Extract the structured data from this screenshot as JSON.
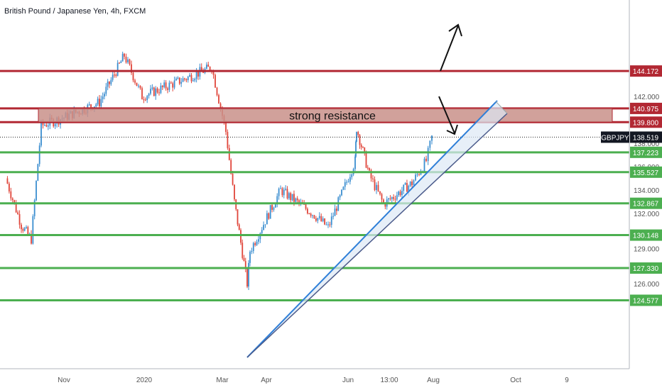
{
  "chart_data": {
    "type": "candlestick",
    "title": "British Pound / Japanese Yen, 4h, FXCM",
    "symbol": "GBPJPY",
    "last_price": "138.519",
    "y_axis_ticks": [
      "126.000",
      "129.000",
      "132.000",
      "134.000",
      "136.000",
      "138.000",
      "142.000"
    ],
    "x_axis_ticks": [
      "Nov",
      "2020",
      "Mar",
      "Apr",
      "Jun",
      "13:00",
      "Aug",
      "Oct",
      "9"
    ],
    "levels": [
      {
        "value": 144.172,
        "label": "144.172",
        "color": "#b22833"
      },
      {
        "value": 140.975,
        "label": "140.975",
        "color": "#b22833"
      },
      {
        "value": 139.8,
        "label": "139.800",
        "color": "#b22833"
      },
      {
        "value": 137.223,
        "label": "137.223",
        "color": "#4caf50"
      },
      {
        "value": 135.527,
        "label": "135.527",
        "color": "#4caf50"
      },
      {
        "value": 132.867,
        "label": "132.867",
        "color": "#4caf50"
      },
      {
        "value": 130.148,
        "label": "130.148",
        "color": "#4caf50"
      },
      {
        "value": 127.33,
        "label": "127.330",
        "color": "#4caf50"
      },
      {
        "value": 124.577,
        "label": "124.577",
        "color": "#4caf50"
      }
    ],
    "resistance_zone": {
      "low": 139.8,
      "high": 140.975,
      "label": "strong resistance",
      "fill": "#c9908a"
    },
    "price_path": [
      [
        "Sep-2019",
        135.0
      ],
      [
        "Oct-2019",
        131.0
      ],
      [
        "Oct-2019",
        129.8
      ],
      [
        "Oct-2019",
        139.5
      ],
      [
        "Nov-2019",
        140.2
      ],
      [
        "Dec-2019",
        141.5
      ],
      [
        "Dec-2019",
        145.5
      ],
      [
        "Jan-2020",
        142.0
      ],
      [
        "Feb-2020",
        143.5
      ],
      [
        "Feb-2020",
        144.5
      ],
      [
        "Mar-2020",
        139.0
      ],
      [
        "Mar-2020",
        133.0
      ],
      [
        "Mar-2020",
        126.0
      ],
      [
        "Mar-2020",
        128.8
      ],
      [
        "Apr-2020",
        134.0
      ],
      [
        "May-2020",
        132.0
      ],
      [
        "May-2020",
        130.8
      ],
      [
        "Jun-2020",
        136.5
      ],
      [
        "Jun-2020",
        139.3
      ],
      [
        "Jun-2020",
        135.3
      ],
      [
        "Jul-2020",
        132.8
      ],
      [
        "Jul-2020",
        134.6
      ],
      [
        "Jul-2020",
        136.5
      ],
      [
        "Aug-2020",
        138.5
      ]
    ],
    "colors": {
      "up": "#3b8ed0",
      "down": "#e0453a",
      "support": "#4caf50",
      "resistance": "#b22833",
      "trendline": "#2f7fd8"
    }
  }
}
